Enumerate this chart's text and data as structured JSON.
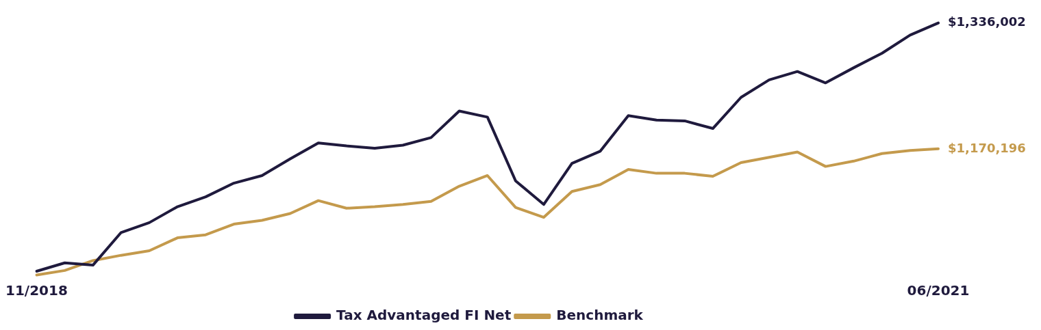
{
  "chart_data": {
    "type": "line",
    "categories": [
      "11/2018",
      null,
      null,
      null,
      null,
      null,
      null,
      null,
      null,
      null,
      null,
      null,
      null,
      null,
      null,
      null,
      null,
      null,
      null,
      null,
      null,
      null,
      null,
      null,
      null,
      null,
      null,
      null,
      null,
      null,
      null,
      null,
      "06/2021"
    ],
    "series": [
      {
        "name": "Tax Advantaged FI Net",
        "color": "#1f1a3d",
        "values": [
          1009000,
          1020000,
          1017000,
          1060000,
          1073000,
          1094000,
          1107000,
          1125000,
          1135000,
          1157000,
          1178000,
          1174000,
          1171000,
          1175000,
          1185000,
          1220000,
          1212000,
          1128000,
          1097000,
          1151000,
          1167000,
          1214000,
          1208000,
          1207000,
          1197000,
          1238000,
          1261000,
          1272000,
          1257000,
          1277000,
          1296000,
          1320000,
          1336002
        ],
        "value_labels": [
          null,
          null,
          null,
          null,
          null,
          null,
          null,
          null,
          null,
          null,
          null,
          null,
          null,
          null,
          null,
          null,
          null,
          null,
          null,
          null,
          null,
          null,
          null,
          null,
          null,
          null,
          null,
          null,
          null,
          null,
          null,
          null,
          "$1,336,002"
        ]
      },
      {
        "name": "Benchmark",
        "color": "#c49a4c",
        "values": [
          1004000,
          1010000,
          1023000,
          1030000,
          1036000,
          1053000,
          1057000,
          1071000,
          1076000,
          1085000,
          1102000,
          1092000,
          1094000,
          1097000,
          1101000,
          1121000,
          1135000,
          1093000,
          1080000,
          1114000,
          1123000,
          1143000,
          1138000,
          1138000,
          1134000,
          1152000,
          1159000,
          1166000,
          1147000,
          1154000,
          1164000,
          1168000,
          1170196
        ],
        "value_labels": [
          null,
          null,
          null,
          null,
          null,
          null,
          null,
          null,
          null,
          null,
          null,
          null,
          null,
          null,
          null,
          null,
          null,
          null,
          null,
          null,
          null,
          null,
          null,
          null,
          null,
          null,
          null,
          null,
          null,
          null,
          null,
          null,
          "$1,170,196"
        ]
      }
    ],
    "tick_labels": "x",
    "grid": false,
    "legend": "bottom",
    "marker": "none",
    "line_style": "solid"
  }
}
